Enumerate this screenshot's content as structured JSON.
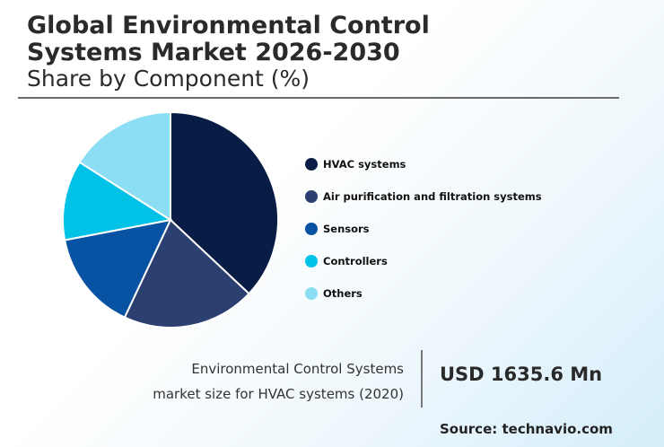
{
  "header": {
    "title_line1": "Global Environmental Control",
    "title_line2": "Systems Market 2026-2030",
    "subtitle": "Share by Component (%)"
  },
  "chart_data": {
    "type": "pie",
    "title": "Global Environmental Control Systems Market 2026-2030",
    "subtitle": "Share by Component (%)",
    "categories": [
      "HVAC systems",
      "Air purification and filtration systems",
      "Sensors",
      "Controllers",
      "Others"
    ],
    "values": [
      37,
      20,
      15,
      12,
      16
    ],
    "colors": [
      "#081c45",
      "#2b3f70",
      "#0752a2",
      "#00c2e6",
      "#8bdef3"
    ],
    "legend_position": "right"
  },
  "market": {
    "caption_line1": "Environmental Control Systems",
    "caption_line2": "market size for HVAC systems (2020)",
    "value": "USD 1635.6 Mn"
  },
  "source": "Source: technavio.com"
}
